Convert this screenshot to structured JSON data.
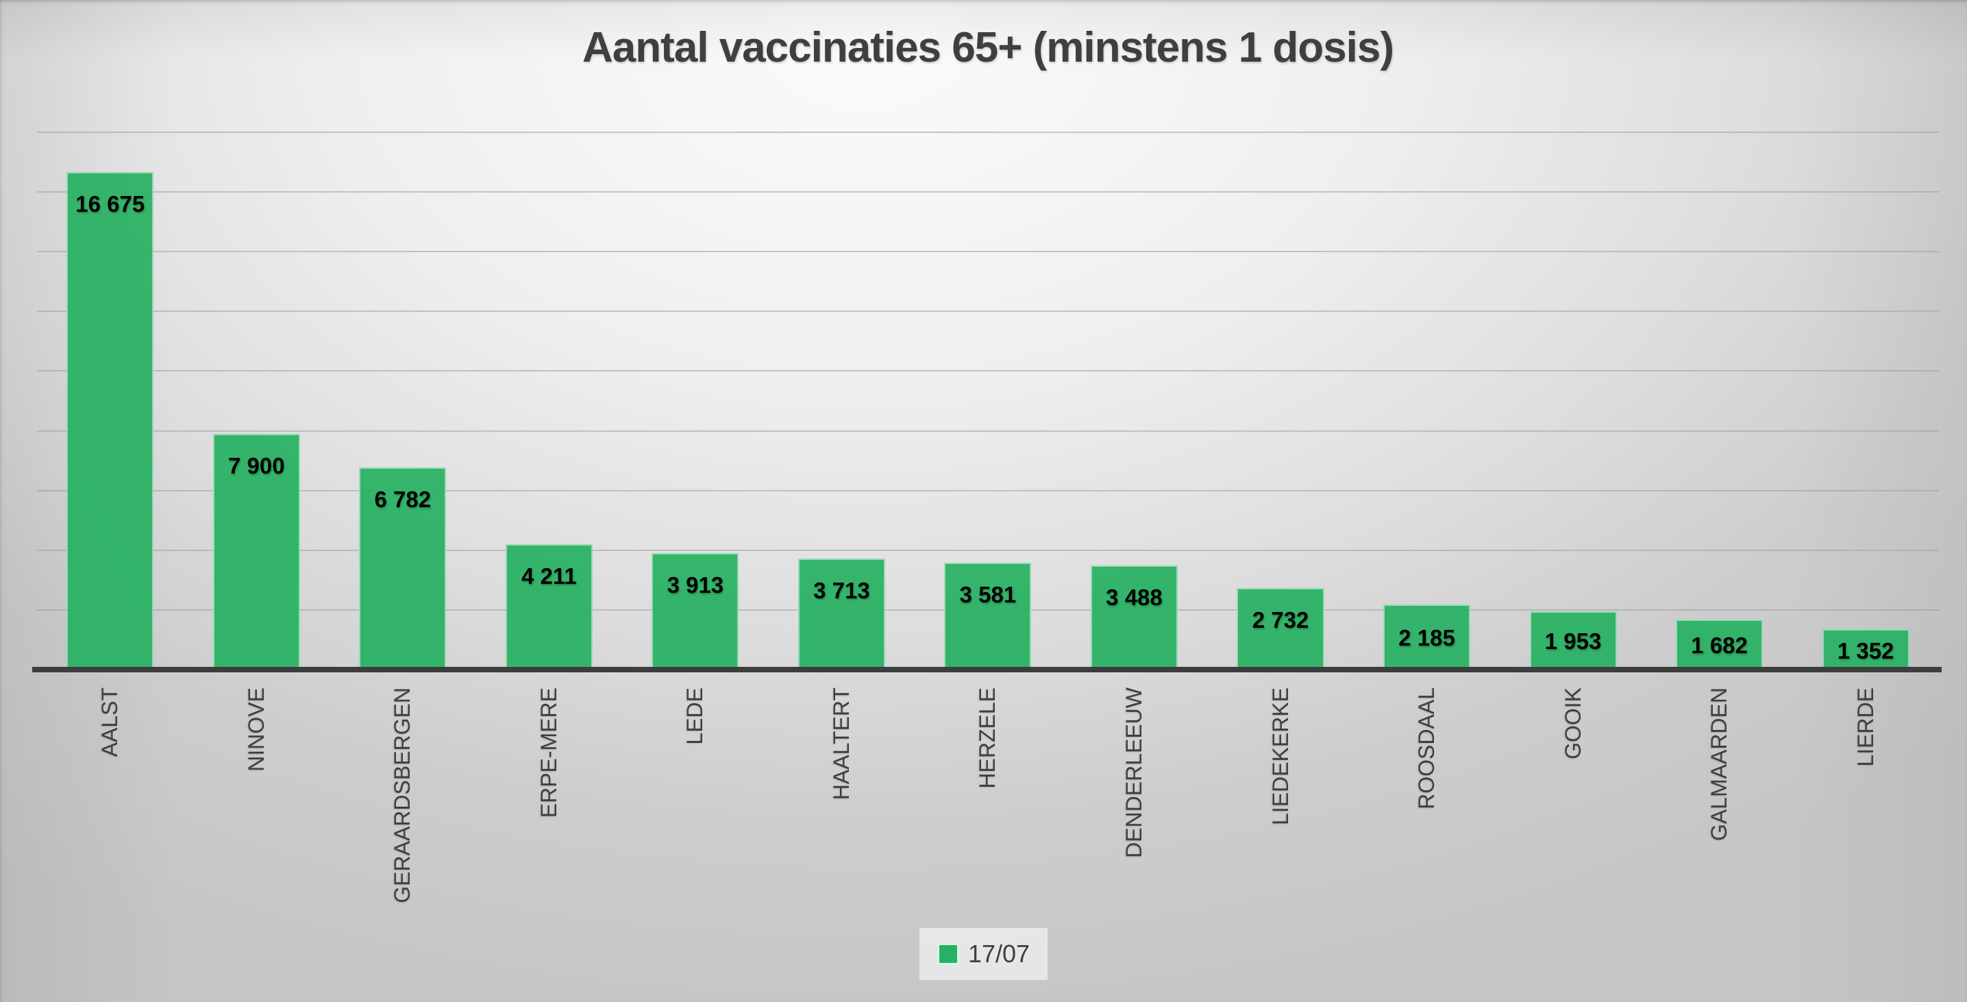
{
  "title": "Aantal vaccinaties 65+ (minstens 1 dosis)",
  "colors": {
    "bar_fill": "rgba(40,177,99,0.94)",
    "bar_solid": "#28B163",
    "bar_edge": "rgba(255,255,255,0.5)",
    "axis_line": "#3D3D3D",
    "gridline": "#9E9E9E",
    "text": "#3F3F3F",
    "value_label": "#000000",
    "legend_bg": "rgba(255,255,255,0.55)",
    "background_center": "#FBFBFB",
    "background_edge": "#C5C5C6"
  },
  "chart_data": {
    "type": "bar",
    "title": "Aantal vaccinaties 65+ (minstens 1 dosis)",
    "series_name": "17/07",
    "categories": [
      "AALST",
      "NINOVE",
      "GERAARDSBERGEN",
      "ERPE-MERE",
      "LEDE",
      "HAALTERT",
      "HERZELE",
      "DENDERLEEUW",
      "LIEDEKERKE",
      "ROOSDAAL",
      "GOOIK",
      "GALMAARDEN",
      "LIERDE"
    ],
    "values": [
      16675,
      7900,
      6782,
      4211,
      3913,
      3713,
      3581,
      3488,
      2732,
      2185,
      1953,
      1682,
      1352
    ],
    "data_labels": [
      "16 675",
      "7 900",
      "6 782",
      "4 211",
      "3 913",
      "3 713",
      "3 581",
      "3 488",
      "2 732",
      "2 185",
      "1 953",
      "1 682",
      "1 352"
    ],
    "xlabel": "",
    "ylabel": "",
    "ylim": [
      0,
      18000
    ],
    "gridline_interval": 2000,
    "grid": true,
    "x_tick_rotation": -90,
    "legend_position": "bottom",
    "data_label_position": "inside-end"
  }
}
